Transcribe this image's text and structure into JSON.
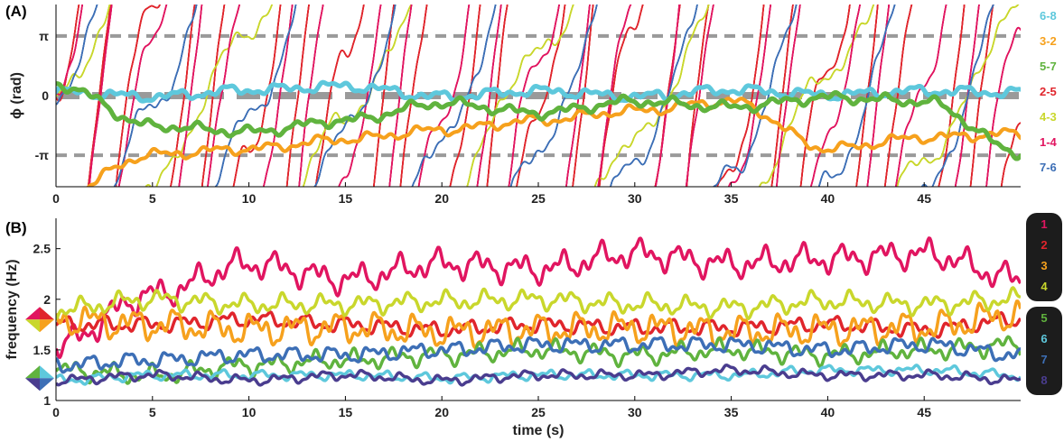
{
  "chart_data": [
    {
      "panel": "(A)",
      "type": "line",
      "ylabel": "ϕ (rad)",
      "xlim": [
        0,
        50
      ],
      "ylim": [
        -4.8,
        4.8
      ],
      "x_ticks": [
        "0",
        "5",
        "10",
        "15",
        "20",
        "25",
        "30",
        "35",
        "40",
        "45"
      ],
      "y_ticks": [
        {
          "value": 3.1416,
          "label": "π"
        },
        {
          "value": 0,
          "label": "0"
        },
        {
          "value": -3.1416,
          "label": "-π"
        }
      ],
      "reference_lines": [
        3.1416,
        0,
        -3.1416
      ],
      "reference_color": "#9a9a9a",
      "wrap_range": [
        -6.2832,
        6.2832
      ],
      "series": [
        {
          "name": "6-8",
          "color": "#5ec8dc",
          "width": 5,
          "t": [
            0,
            5,
            10,
            15,
            20,
            25,
            30,
            35,
            40,
            45,
            50
          ],
          "phase": [
            0.2,
            -0.05,
            0.3,
            0.5,
            -0.05,
            0.25,
            -0.05,
            0.3,
            0.05,
            0.25,
            0.15
          ]
        },
        {
          "name": "3-2",
          "color": "#f6a11d",
          "width": 4,
          "t": [
            0,
            5,
            10,
            15,
            20,
            25,
            30,
            35,
            40,
            45,
            50
          ],
          "phase": [
            -5.3,
            -3.1,
            -2.8,
            -2.3,
            -1.8,
            -1.3,
            -0.8,
            -0.3,
            -2.8,
            -2.2,
            -2.0
          ]
        },
        {
          "name": "5-7",
          "color": "#60b33e",
          "width": 5,
          "t": [
            0,
            5,
            10,
            15,
            20,
            25,
            30,
            35,
            40,
            45,
            50
          ],
          "phase": [
            0.6,
            -1.6,
            -1.9,
            -1.3,
            -0.4,
            -0.9,
            -0.3,
            -0.6,
            -0.1,
            -0.3,
            -3.0
          ]
        },
        {
          "name": "2-5",
          "color": "#e0252c",
          "width": 1.6,
          "t": [
            0,
            5,
            10,
            15,
            20,
            25,
            30,
            35,
            40,
            45,
            50
          ],
          "phase": [
            0,
            30,
            60,
            90,
            120,
            150,
            180,
            210,
            240,
            270,
            300
          ]
        },
        {
          "name": "4-3",
          "color": "#c9d72c",
          "width": 1.6,
          "t": [
            0,
            5,
            10,
            15,
            20,
            25,
            30,
            35,
            40,
            45,
            50
          ],
          "phase": [
            0,
            8,
            16,
            24,
            32,
            40,
            48,
            56,
            64,
            72,
            80
          ]
        },
        {
          "name": "1-4",
          "color": "#e11560",
          "width": 1.6,
          "t": [
            0,
            5,
            10,
            15,
            20,
            25,
            30,
            35,
            40,
            45,
            50
          ],
          "phase": [
            0,
            28,
            56,
            84,
            112,
            140,
            168,
            196,
            224,
            252,
            280
          ]
        },
        {
          "name": "7-6",
          "color": "#3d6fb6",
          "width": 1.6,
          "t": [
            0,
            5,
            10,
            15,
            20,
            25,
            30,
            35,
            40,
            45,
            50
          ],
          "phase": [
            0,
            12,
            24,
            36,
            48,
            60,
            72,
            84,
            96,
            108,
            120
          ]
        }
      ]
    },
    {
      "panel": "(B)",
      "type": "line",
      "xlabel": "time (s)",
      "ylabel": "frequency (Hz)",
      "xlim": [
        0,
        50
      ],
      "ylim": [
        1,
        2.8
      ],
      "x_ticks": [
        "0",
        "5",
        "10",
        "15",
        "20",
        "25",
        "30",
        "35",
        "40",
        "45"
      ],
      "y_ticks": [
        "1",
        "1.5",
        "2",
        "2.5"
      ],
      "series": [
        {
          "name": "1",
          "color": "#e11560",
          "t": [
            0,
            5,
            10,
            15,
            20,
            25,
            30,
            35,
            40,
            45,
            50
          ],
          "values": [
            1.55,
            2.05,
            2.35,
            2.2,
            2.35,
            2.3,
            2.45,
            2.35,
            2.4,
            2.45,
            2.2
          ]
        },
        {
          "name": "2",
          "color": "#e0252c",
          "t": [
            0,
            5,
            10,
            15,
            20,
            25,
            30,
            35,
            40,
            45,
            50
          ],
          "values": [
            1.75,
            1.75,
            1.8,
            1.75,
            1.7,
            1.75,
            1.72,
            1.72,
            1.75,
            1.7,
            1.8
          ]
        },
        {
          "name": "3",
          "color": "#f6a11d",
          "t": [
            0,
            5,
            10,
            15,
            20,
            25,
            30,
            35,
            40,
            45,
            50
          ],
          "values": [
            1.8,
            1.75,
            1.7,
            1.72,
            1.68,
            1.7,
            1.72,
            1.68,
            1.7,
            1.72,
            1.85
          ]
        },
        {
          "name": "4",
          "color": "#c9d72c",
          "t": [
            0,
            5,
            10,
            15,
            20,
            25,
            30,
            35,
            40,
            45,
            50
          ],
          "values": [
            1.9,
            2.0,
            1.95,
            1.95,
            1.98,
            2.0,
            1.95,
            1.92,
            1.98,
            1.95,
            2.0
          ]
        },
        {
          "name": "5",
          "color": "#60b33e",
          "t": [
            0,
            5,
            10,
            15,
            20,
            25,
            30,
            35,
            40,
            45,
            50
          ],
          "values": [
            1.3,
            1.25,
            1.35,
            1.4,
            1.45,
            1.5,
            1.45,
            1.5,
            1.45,
            1.5,
            1.55
          ]
        },
        {
          "name": "6",
          "color": "#5ec8dc",
          "t": [
            0,
            5,
            10,
            15,
            20,
            25,
            30,
            35,
            40,
            45,
            50
          ],
          "values": [
            1.2,
            1.25,
            1.25,
            1.25,
            1.22,
            1.25,
            1.25,
            1.25,
            1.3,
            1.3,
            1.25
          ]
        },
        {
          "name": "7",
          "color": "#3d6fb6",
          "t": [
            0,
            5,
            10,
            15,
            20,
            25,
            30,
            35,
            40,
            45,
            50
          ],
          "values": [
            1.35,
            1.4,
            1.45,
            1.45,
            1.5,
            1.55,
            1.55,
            1.55,
            1.5,
            1.55,
            1.45
          ]
        },
        {
          "name": "8",
          "color": "#4a3d8f",
          "t": [
            0,
            5,
            10,
            15,
            20,
            25,
            30,
            35,
            40,
            45,
            50
          ],
          "values": [
            1.2,
            1.25,
            1.2,
            1.25,
            1.2,
            1.25,
            1.25,
            1.3,
            1.25,
            1.25,
            1.2
          ]
        }
      ],
      "side_markers": [
        {
          "value": 1.8,
          "colors": [
            "#e11560",
            "#e0252c",
            "#f6a11d",
            "#c9d72c"
          ]
        },
        {
          "value": 1.22,
          "colors": [
            "#60b33e",
            "#5ec8dc",
            "#3d6fb6",
            "#4a3d8f"
          ]
        }
      ],
      "legend_background": "#1c1c1c"
    }
  ]
}
